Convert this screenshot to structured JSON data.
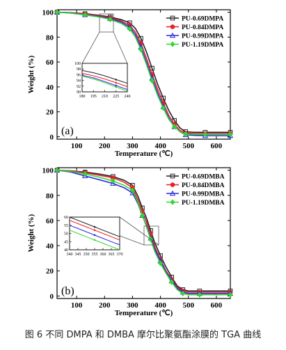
{
  "caption": "图 6 不同 DMPA 和 DMBA 摩尔比聚氨酯涂膜的 TGA 曲线",
  "chart_data": [
    {
      "type": "line",
      "panel_label": "(a)",
      "xlabel": "Temperature (℃)",
      "ylabel": "Weight (%)",
      "xlim": [
        30,
        650
      ],
      "ylim": [
        -2,
        102
      ],
      "xticks": [
        100,
        200,
        300,
        400,
        500,
        600
      ],
      "yticks": [
        0,
        20,
        40,
        60,
        80,
        100
      ],
      "legend_position": "top-right",
      "series": [
        {
          "name": "PU-0.69DMPA",
          "color": "#222222",
          "marker": "square",
          "x": [
            30,
            80,
            130,
            180,
            220,
            260,
            290,
            310,
            330,
            350,
            370,
            390,
            410,
            430,
            450,
            470,
            490,
            520,
            560,
            600,
            650
          ],
          "y": [
            100,
            99.6,
            98.8,
            97.6,
            96.2,
            94,
            91.5,
            87,
            79,
            68,
            55,
            42,
            31,
            21,
            13,
            7,
            4,
            3.5,
            3.5,
            3.5,
            3.5
          ]
        },
        {
          "name": "PU-0.84DMPA",
          "color": "#e8202a",
          "marker": "circle",
          "x": [
            30,
            80,
            130,
            180,
            220,
            260,
            290,
            310,
            330,
            350,
            370,
            390,
            410,
            430,
            450,
            470,
            490,
            520,
            560,
            600,
            650
          ],
          "y": [
            100,
            99.5,
            98.5,
            97.2,
            95.5,
            93,
            89.5,
            84,
            75,
            63,
            50,
            38,
            27,
            17,
            10,
            5,
            2.8,
            2.5,
            2.5,
            2.5,
            2.5
          ]
        },
        {
          "name": "PU-0.99DMPA",
          "color": "#2929e0",
          "marker": "triangle",
          "x": [
            30,
            80,
            130,
            180,
            220,
            260,
            290,
            310,
            330,
            350,
            370,
            390,
            410,
            430,
            450,
            470,
            490,
            520,
            560,
            600,
            650
          ],
          "y": [
            100,
            99.3,
            98,
            96.6,
            94.8,
            92,
            88,
            82,
            72,
            60,
            47,
            35,
            24,
            15,
            8,
            4,
            1.5,
            1,
            0.8,
            0.8,
            0.8
          ]
        },
        {
          "name": "PU-1.19DMPA",
          "color": "#33d633",
          "marker": "diamond",
          "x": [
            30,
            80,
            130,
            180,
            220,
            260,
            290,
            310,
            330,
            350,
            370,
            390,
            410,
            430,
            450,
            470,
            490,
            520,
            560,
            600,
            650
          ],
          "y": [
            100,
            99.2,
            97.8,
            96.2,
            94.2,
            91,
            86.5,
            80,
            70,
            58,
            45,
            33,
            23,
            14,
            8,
            4,
            2,
            1.8,
            1.8,
            1.8,
            1.8
          ]
        }
      ],
      "inset": {
        "xlim": [
          180,
          240
        ],
        "ylim": [
          90,
          100
        ],
        "xticks": [
          180,
          195,
          210,
          225,
          240
        ],
        "yticks": [
          90,
          92,
          94,
          96,
          98,
          100
        ],
        "series": [
          {
            "color": "#222222",
            "x": [
              180,
              195,
              210,
              225,
              240
            ],
            "y": [
              97.5,
              96.7,
              95.6,
              94.3,
              93.0
            ]
          },
          {
            "color": "#e8202a",
            "x": [
              180,
              195,
              210,
              225,
              240
            ],
            "y": [
              96.5,
              95.6,
              94.5,
              93.2,
              91.8
            ]
          },
          {
            "color": "#2929e0",
            "x": [
              180,
              195,
              210,
              225,
              240
            ],
            "y": [
              95.8,
              94.9,
              93.6,
              92.2,
              90.8
            ]
          },
          {
            "color": "#33d633",
            "x": [
              180,
              195,
              210,
              225,
              240
            ],
            "y": [
              95.5,
              94.5,
              93.2,
              91.7,
              90.2
            ]
          }
        ]
      }
    },
    {
      "type": "line",
      "panel_label": "(b)",
      "xlabel": "Temperature (℃)",
      "ylabel": "Weight (%)",
      "xlim": [
        30,
        650
      ],
      "ylim": [
        -2,
        102
      ],
      "xticks": [
        100,
        200,
        300,
        400,
        500,
        600
      ],
      "yticks": [
        0,
        20,
        40,
        60,
        80,
        100
      ],
      "legend_position": "top-right",
      "series": [
        {
          "name": "PU-0.69DMBA",
          "color": "#222222",
          "marker": "square",
          "x": [
            30,
            80,
            130,
            180,
            230,
            270,
            300,
            320,
            335,
            350,
            365,
            380,
            400,
            420,
            440,
            460,
            480,
            500,
            540,
            600,
            650
          ],
          "y": [
            100,
            99.5,
            98.5,
            97,
            95,
            92,
            88,
            79,
            70,
            62,
            52,
            42,
            32,
            23,
            15,
            8,
            5,
            4,
            4,
            4,
            4
          ]
        },
        {
          "name": "PU-0.84DMBA",
          "color": "#e8202a",
          "marker": "circle",
          "x": [
            30,
            80,
            130,
            180,
            230,
            270,
            300,
            320,
            335,
            350,
            365,
            380,
            400,
            420,
            440,
            460,
            480,
            500,
            540,
            600,
            650
          ],
          "y": [
            100,
            99.3,
            98,
            96,
            94,
            90.5,
            86,
            76,
            67,
            59,
            49,
            39,
            29,
            20,
            13,
            7,
            4,
            3,
            3,
            3,
            3
          ]
        },
        {
          "name": "PU-0.99DMBA",
          "color": "#2929e0",
          "marker": "triangle",
          "x": [
            30,
            80,
            130,
            180,
            230,
            270,
            300,
            320,
            335,
            350,
            365,
            380,
            400,
            420,
            440,
            460,
            480,
            500,
            540,
            600,
            650
          ],
          "y": [
            100,
            98.5,
            95.5,
            92.5,
            89.5,
            86,
            82,
            73,
            64,
            56,
            46,
            37,
            28,
            19,
            12,
            6,
            3,
            2,
            2,
            2,
            2
          ]
        },
        {
          "name": "PU-1.19DMBA",
          "color": "#33d633",
          "marker": "diamond",
          "x": [
            30,
            80,
            130,
            180,
            230,
            270,
            300,
            320,
            335,
            350,
            365,
            380,
            400,
            420,
            440,
            460,
            480,
            500,
            540,
            600,
            650
          ],
          "y": [
            100,
            99,
            97,
            94.5,
            91.5,
            88,
            84,
            74,
            64,
            55,
            45,
            35,
            26,
            18,
            11,
            5,
            2,
            1,
            1,
            1,
            1
          ]
        }
      ],
      "inset": {
        "xlim": [
          340,
          370
        ],
        "ylim": [
          40,
          60
        ],
        "xticks": [
          340,
          345,
          350,
          355,
          360,
          365,
          370
        ],
        "yticks": [
          40,
          45,
          50,
          55,
          60
        ],
        "series": [
          {
            "color": "#222222",
            "x": [
              340,
              345,
              350,
              355,
              360,
              365,
              370
            ],
            "y": [
              60,
              58,
              56,
              54,
              52,
              50,
              48
            ]
          },
          {
            "color": "#e8202a",
            "x": [
              340,
              345,
              350,
              355,
              360,
              365,
              370
            ],
            "y": [
              58,
              56,
              54,
              52,
              50,
              48,
              46
            ]
          },
          {
            "color": "#2929e0",
            "x": [
              340,
              345,
              350,
              355,
              360,
              365,
              370
            ],
            "y": [
              55,
              53,
              51,
              49,
              47,
              45,
              43
            ]
          },
          {
            "color": "#33d633",
            "x": [
              340,
              345,
              350,
              355,
              360,
              365,
              370
            ],
            "y": [
              52,
              50,
              48,
              46,
              44,
              42,
              40
            ]
          }
        ]
      }
    }
  ]
}
